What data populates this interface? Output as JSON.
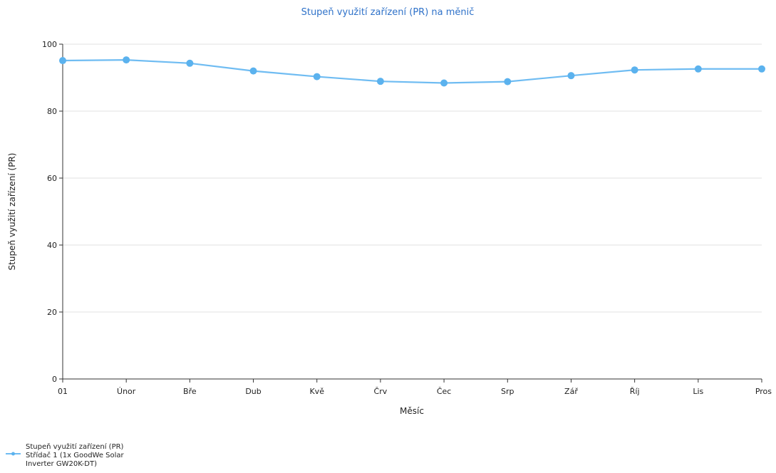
{
  "chart_data": {
    "type": "line",
    "title": "Stupeň využití zařízení (PR) na měnič",
    "xlabel": "Měsíc",
    "ylabel": "Stupeň využití zařízení (PR)",
    "categories": [
      "01",
      "Únor",
      "Bře",
      "Dub",
      "Kvě",
      "Črv",
      "Čec",
      "Srp",
      "Zář",
      "Říj",
      "Lis",
      "Pros"
    ],
    "ylim": [
      0,
      100
    ],
    "yticks": [
      0,
      20,
      40,
      60,
      80,
      100
    ],
    "grid": true,
    "legend_position": "bottom-left",
    "series": [
      {
        "name": "Stupeň využití zařízení (PR) Střídač 1 (1x GoodWe Solar Inverter GW20K-DT)",
        "name_lines": [
          "Stupeň využití zařízení (PR)",
          "Střídač 1 (1x GoodWe Solar",
          "Inverter GW20K-DT)"
        ],
        "color": "#6fbcf2",
        "values": [
          95.1,
          95.3,
          94.3,
          92.0,
          90.3,
          88.9,
          88.4,
          88.8,
          90.6,
          92.3,
          92.6,
          92.6
        ]
      }
    ]
  }
}
